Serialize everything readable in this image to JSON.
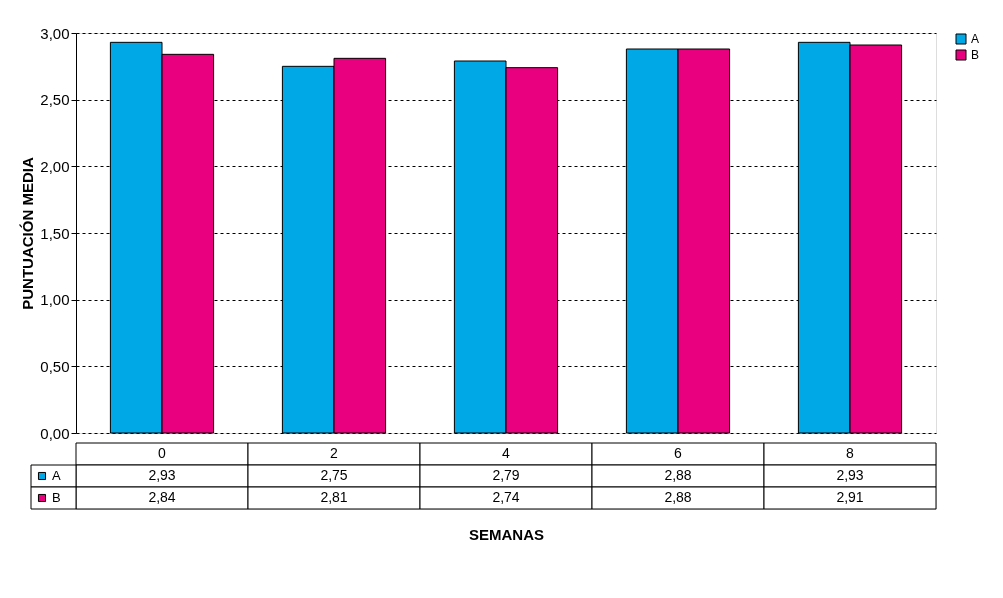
{
  "chart_data": {
    "type": "bar",
    "xlabel": "SEMANAS",
    "ylabel": "PUNTUACIÓN MEDIA",
    "categories": [
      "0",
      "2",
      "4",
      "6",
      "8"
    ],
    "series": [
      {
        "name": "A",
        "color": "#00a8e6",
        "values": [
          2.93,
          2.75,
          2.79,
          2.88,
          2.93
        ],
        "value_labels": [
          "2,93",
          "2,75",
          "2,79",
          "2,88",
          "2,93"
        ]
      },
      {
        "name": "B",
        "color": "#e8007f",
        "values": [
          2.84,
          2.81,
          2.74,
          2.88,
          2.91
        ],
        "value_labels": [
          "2,84",
          "2,81",
          "2,74",
          "2,88",
          "2,91"
        ]
      }
    ],
    "ylim": [
      0,
      3
    ],
    "yticks": [
      {
        "value": 0,
        "label": "0,00"
      },
      {
        "value": 0.5,
        "label": "0,50"
      },
      {
        "value": 1,
        "label": "1,00"
      },
      {
        "value": 1.5,
        "label": "1,50"
      },
      {
        "value": 2,
        "label": "2,00"
      },
      {
        "value": 2.5,
        "label": "2,50"
      },
      {
        "value": 3,
        "label": "3,00"
      }
    ],
    "grid": "y",
    "legend": "right"
  }
}
